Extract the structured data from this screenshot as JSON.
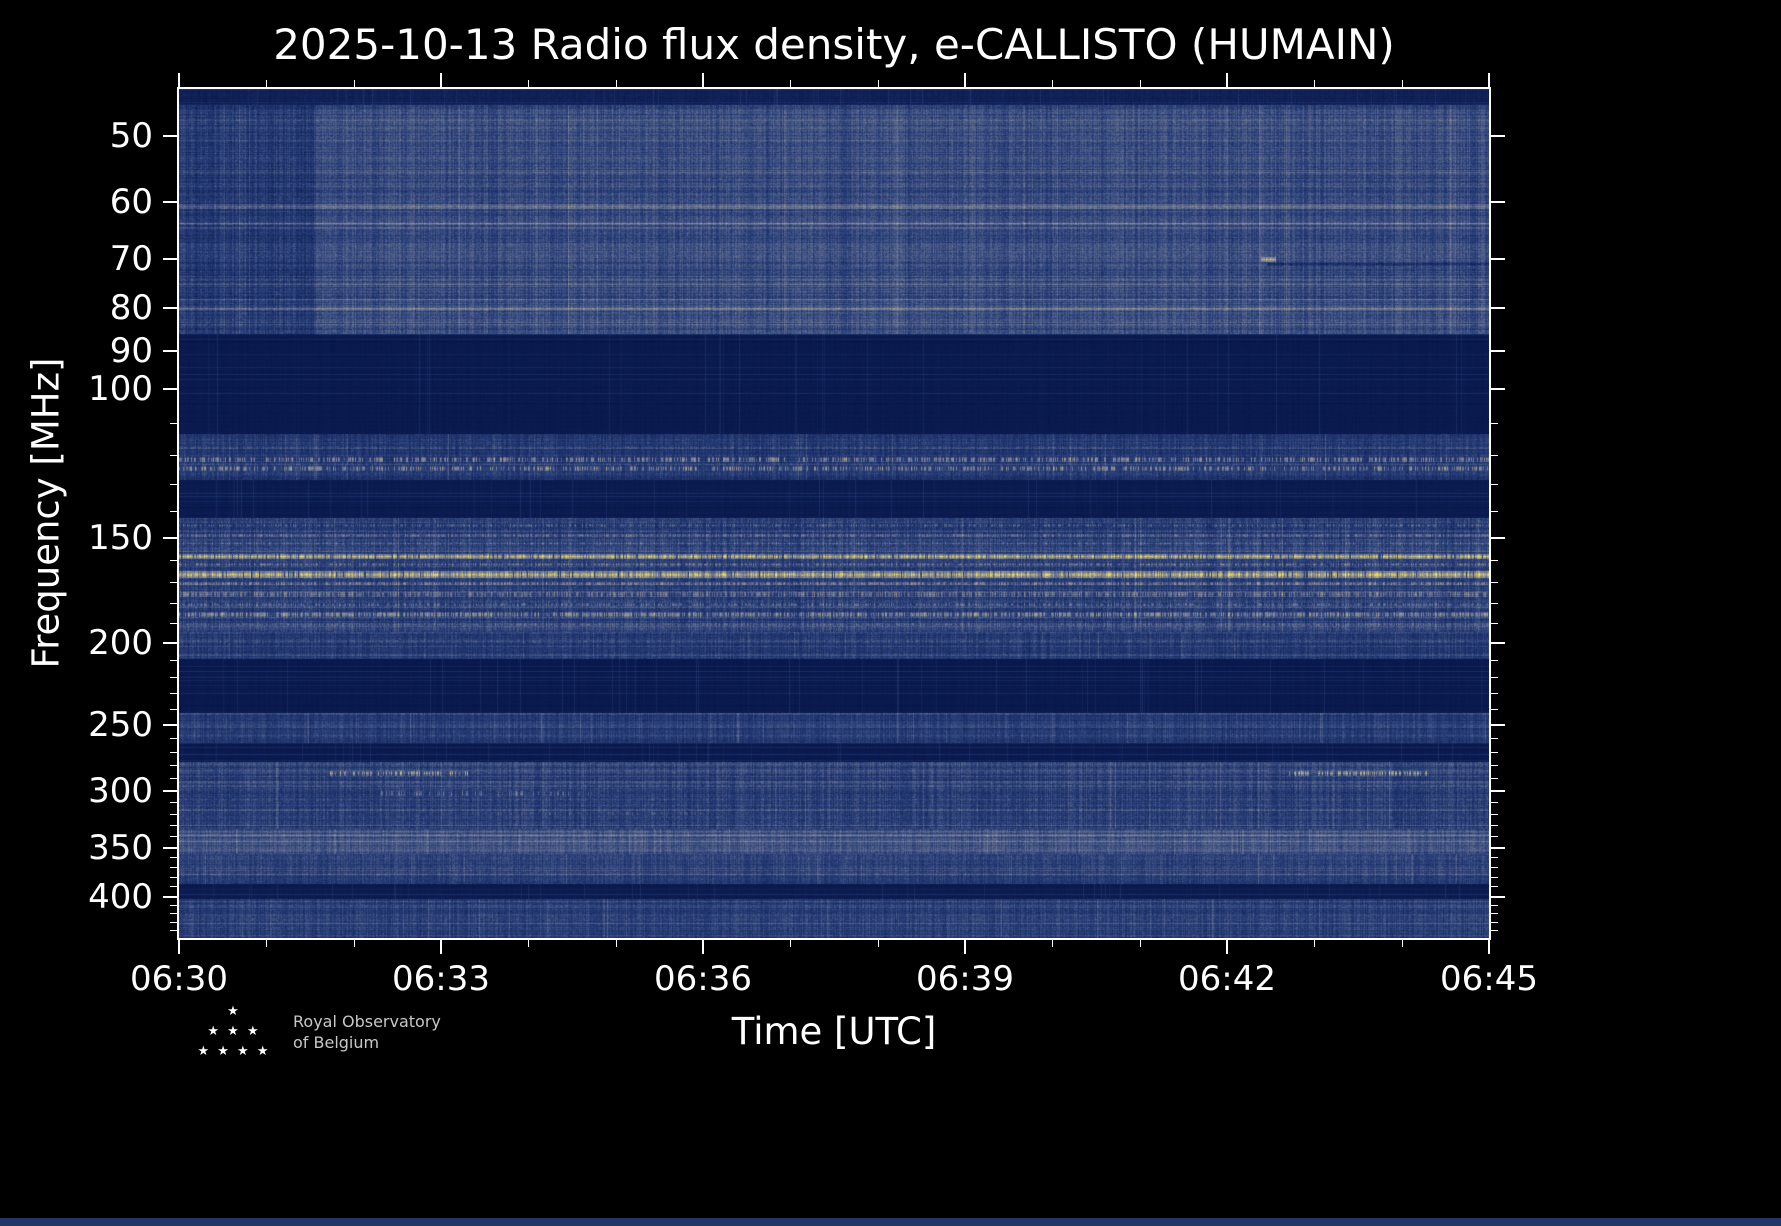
{
  "page": {
    "background_color": "#000000",
    "bottom_strip_color": "#223668",
    "frame_color": "#ffffff",
    "text_color": "#ffffff"
  },
  "logo": {
    "line1": "Royal Observatory",
    "line2": "of Belgium",
    "stars": "★\n★ ★ ★\n★ ★ ★ ★"
  },
  "chart_data": {
    "type": "heatmap",
    "title": "2025-10-13 Radio flux density, e-CALLISTO (HUMAIN)",
    "xlabel": "Time [UTC]",
    "ylabel": "Frequency [MHz]",
    "x_span_minutes": 15,
    "x_ticks": [
      {
        "t": 0,
        "label": "06:30"
      },
      {
        "t": 3,
        "label": "06:33"
      },
      {
        "t": 6,
        "label": "06:36"
      },
      {
        "t": 9,
        "label": "06:39"
      },
      {
        "t": 12,
        "label": "06:42"
      },
      {
        "t": 15,
        "label": "06:45"
      }
    ],
    "x_minor_step_min": 1,
    "y_scale": "log",
    "y_min": 44,
    "y_max": 448,
    "y_ticks": [
      50,
      60,
      70,
      80,
      90,
      100,
      150,
      200,
      250,
      300,
      350,
      400
    ],
    "y_minor_ticks": [
      110,
      120,
      130,
      140,
      160,
      170,
      180,
      190,
      210,
      220,
      230,
      240,
      260,
      270,
      280,
      290,
      310,
      320,
      330,
      340,
      360,
      370,
      380,
      390,
      410,
      420,
      430,
      440
    ],
    "legend": "none",
    "grid": false,
    "seed": 7,
    "colormap_stops": [
      [
        0.0,
        5,
        20,
        72
      ],
      [
        0.3,
        40,
        62,
        120
      ],
      [
        0.55,
        108,
        118,
        148
      ],
      [
        0.72,
        165,
        160,
        132
      ],
      [
        0.85,
        225,
        210,
        95
      ],
      [
        1.0,
        255,
        243,
        108
      ]
    ],
    "bands": [
      {
        "name": "top-edge",
        "f_min": 44,
        "f_max": 46,
        "base": 0.1,
        "noise": 0.04,
        "col_var": 0.02,
        "row_var": 0.02
      },
      {
        "name": "vhf-low-noise",
        "f_min": 46,
        "f_max": 86,
        "base": 0.35,
        "noise": 0.1,
        "col_var": 0.07,
        "row_var": 0.06
      },
      {
        "name": "fm-blanked",
        "f_min": 86,
        "f_max": 113,
        "base": 0.05,
        "noise": 0.012,
        "col_var": 0.01,
        "row_var": 0.01
      },
      {
        "name": "airband-speckle",
        "f_min": 113,
        "f_max": 128,
        "base": 0.26,
        "noise": 0.09,
        "col_var": 0.06,
        "row_var": 0.05
      },
      {
        "name": "quiet-gap-135",
        "f_min": 128,
        "f_max": 142,
        "base": 0.06,
        "noise": 0.014,
        "col_var": 0.01,
        "row_var": 0.01
      },
      {
        "name": "vhf-mid-active",
        "f_min": 142,
        "f_max": 194,
        "base": 0.3,
        "noise": 0.1,
        "col_var": 0.07,
        "row_var": 0.06
      },
      {
        "name": "band-200-noise",
        "f_min": 194,
        "f_max": 209,
        "base": 0.28,
        "noise": 0.09,
        "col_var": 0.06,
        "row_var": 0.05
      },
      {
        "name": "quiet-gap-225",
        "f_min": 209,
        "f_max": 242,
        "base": 0.045,
        "noise": 0.012,
        "col_var": 0.01,
        "row_var": 0.01
      },
      {
        "name": "band-250-noise",
        "f_min": 242,
        "f_max": 263,
        "base": 0.27,
        "noise": 0.08,
        "col_var": 0.06,
        "row_var": 0.05
      },
      {
        "name": "quiet-gap-270",
        "f_min": 263,
        "f_max": 277,
        "base": 0.05,
        "noise": 0.012,
        "col_var": 0.01,
        "row_var": 0.01
      },
      {
        "name": "uhf-noise",
        "f_min": 277,
        "f_max": 333,
        "base": 0.3,
        "noise": 0.1,
        "col_var": 0.07,
        "row_var": 0.06
      },
      {
        "name": "band-340-bright",
        "f_min": 333,
        "f_max": 356,
        "base": 0.37,
        "noise": 0.09,
        "col_var": 0.06,
        "row_var": 0.05
      },
      {
        "name": "band-365-noise",
        "f_min": 356,
        "f_max": 386,
        "base": 0.29,
        "noise": 0.09,
        "col_var": 0.06,
        "row_var": 0.05
      },
      {
        "name": "quiet-gap-392",
        "f_min": 386,
        "f_max": 403,
        "base": 0.06,
        "noise": 0.014,
        "col_var": 0.01,
        "row_var": 0.01
      },
      {
        "name": "uhf-top-noise",
        "f_min": 403,
        "f_max": 448,
        "base": 0.27,
        "noise": 0.09,
        "col_var": 0.06,
        "row_var": 0.05
      }
    ],
    "lines": [
      {
        "freq": 49,
        "halfwidth": 1,
        "intensity": 0.07,
        "speckle": 1
      },
      {
        "freq": 53,
        "halfwidth": 1,
        "intensity": 0.06,
        "speckle": 1
      },
      {
        "freq": 57,
        "halfwidth": 1,
        "intensity": 0.08,
        "speckle": 1
      },
      {
        "freq": 60.5,
        "halfwidth": 2,
        "intensity": 0.2,
        "speckle": 1
      },
      {
        "freq": 63.5,
        "halfwidth": 1,
        "intensity": 0.12,
        "speckle": 1
      },
      {
        "freq": 68,
        "halfwidth": 1,
        "intensity": 0.07,
        "speckle": 1
      },
      {
        "freq": 74,
        "halfwidth": 1,
        "intensity": 0.09,
        "speckle": 1
      },
      {
        "freq": 80,
        "halfwidth": 1,
        "intensity": 0.11,
        "speckle": 1
      },
      {
        "freq": 84,
        "halfwidth": 1,
        "intensity": 0.08,
        "speckle": 1
      },
      {
        "freq": 117,
        "halfwidth": 1,
        "intensity": 0.12,
        "speckle": 0.7
      },
      {
        "freq": 121,
        "halfwidth": 2,
        "intensity": 0.5,
        "speckle": 0.45
      },
      {
        "freq": 124,
        "halfwidth": 2,
        "intensity": 0.45,
        "speckle": 0.4
      },
      {
        "freq": 145,
        "halfwidth": 1,
        "intensity": 0.25,
        "speckle": 0.5
      },
      {
        "freq": 149,
        "halfwidth": 1,
        "intensity": 0.22,
        "speckle": 0.45
      },
      {
        "freq": 152,
        "halfwidth": 1,
        "intensity": 0.18,
        "speckle": 0.4
      },
      {
        "freq": 157.5,
        "halfwidth": 2,
        "intensity": 0.55,
        "speckle": 0.9
      },
      {
        "freq": 161,
        "halfwidth": 1,
        "intensity": 0.28,
        "speckle": 0.5
      },
      {
        "freq": 165.5,
        "halfwidth": 3,
        "intensity": 0.65,
        "speckle": 0.95
      },
      {
        "freq": 170,
        "halfwidth": 1,
        "intensity": 0.3,
        "speckle": 0.5
      },
      {
        "freq": 175,
        "halfwidth": 2,
        "intensity": 0.35,
        "speckle": 0.55
      },
      {
        "freq": 180,
        "halfwidth": 1,
        "intensity": 0.28,
        "speckle": 0.5
      },
      {
        "freq": 185,
        "halfwidth": 2,
        "intensity": 0.42,
        "speckle": 0.6
      },
      {
        "freq": 190,
        "halfwidth": 1,
        "intensity": 0.18,
        "speckle": 0.4
      },
      {
        "freq": 199,
        "halfwidth": 1,
        "intensity": 0.1,
        "speckle": 0.6
      },
      {
        "freq": 251,
        "halfwidth": 1,
        "intensity": 0.1,
        "speckle": 1
      },
      {
        "freq": 257,
        "halfwidth": 1,
        "intensity": 0.08,
        "speckle": 0.8
      },
      {
        "freq": 296,
        "halfwidth": 1,
        "intensity": 0.08,
        "speckle": 0.6
      },
      {
        "freq": 306,
        "halfwidth": 1,
        "intensity": 0.07,
        "speckle": 0.6
      },
      {
        "freq": 315,
        "halfwidth": 1,
        "intensity": 0.07,
        "speckle": 0.5
      },
      {
        "freq": 338,
        "halfwidth": 1,
        "intensity": 0.1,
        "speckle": 1
      },
      {
        "freq": 344,
        "halfwidth": 1,
        "intensity": 0.08,
        "speckle": 1
      },
      {
        "freq": 350,
        "halfwidth": 1,
        "intensity": 0.07,
        "speckle": 1
      },
      {
        "freq": 360,
        "halfwidth": 1,
        "intensity": 0.08,
        "speckle": 0.9
      },
      {
        "freq": 368,
        "halfwidth": 1,
        "intensity": 0.07,
        "speckle": 0.8
      },
      {
        "freq": 376,
        "halfwidth": 1,
        "intensity": 0.06,
        "speckle": 0.8
      },
      {
        "freq": 410,
        "halfwidth": 1,
        "intensity": 0.11,
        "speckle": 1
      },
      {
        "freq": 418,
        "halfwidth": 1,
        "intensity": 0.06,
        "speckle": 0.8
      },
      {
        "freq": 427,
        "halfwidth": 1,
        "intensity": 0.07,
        "speckle": 0.8
      },
      {
        "freq": 436,
        "halfwidth": 1,
        "intensity": 0.06,
        "speckle": 0.8
      }
    ],
    "events": [
      {
        "freq": 285,
        "halfwidth": 2,
        "t_start": 1.7,
        "t_end": 3.3,
        "intensity": 0.5,
        "speckle": 0.4
      },
      {
        "freq": 285,
        "halfwidth": 2,
        "t_start": 12.7,
        "t_end": 14.3,
        "intensity": 0.5,
        "speckle": 0.4
      },
      {
        "freq": 301,
        "halfwidth": 2,
        "t_start": 2.3,
        "t_end": 4.8,
        "intensity": 0.32,
        "speckle": 0.25
      },
      {
        "freq": 318,
        "halfwidth": 1,
        "t_start": 3.0,
        "t_end": 6.0,
        "intensity": 0.18,
        "speckle": 0.2
      },
      {
        "freq": 71,
        "halfwidth": 1,
        "t_start": 12.45,
        "t_end": 15,
        "intensity": -0.22,
        "speckle": 1
      },
      {
        "freq": 70,
        "halfwidth": 2,
        "t_start": 12.38,
        "t_end": 12.55,
        "intensity": 0.45,
        "speckle": 1
      }
    ],
    "left_dark_patch": {
      "t_start": 0,
      "t_end": 1.55,
      "f_min": 46,
      "f_max": 86,
      "delta": -0.09
    }
  }
}
